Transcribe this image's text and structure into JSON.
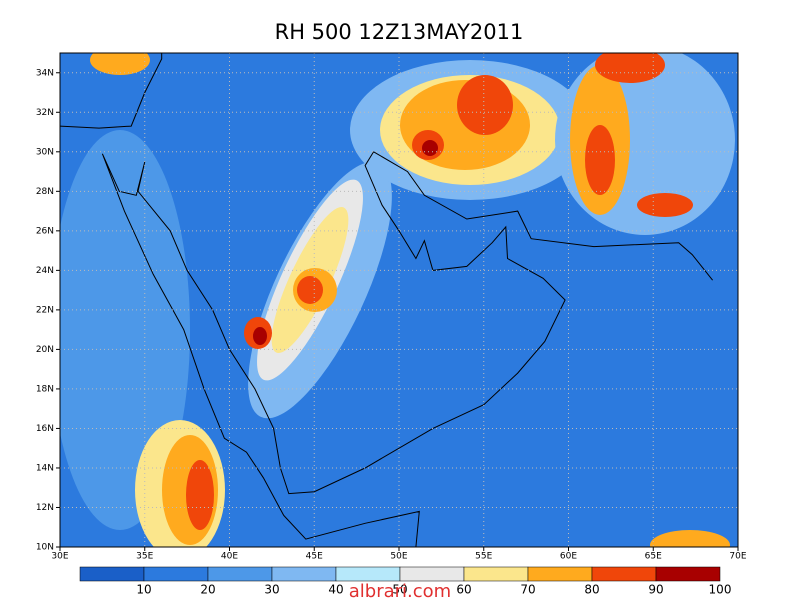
{
  "chart_data": {
    "type": "map",
    "title": "RH 500 12Z13MAY2011",
    "xlim": [
      30,
      70
    ],
    "ylim": [
      10,
      35
    ],
    "xticks": [
      {
        "value": 30,
        "label": "30E"
      },
      {
        "value": 35,
        "label": "35E"
      },
      {
        "value": 40,
        "label": "40E"
      },
      {
        "value": 45,
        "label": "45E"
      },
      {
        "value": 50,
        "label": "50E"
      },
      {
        "value": 55,
        "label": "55E"
      },
      {
        "value": 60,
        "label": "60E"
      },
      {
        "value": 65,
        "label": "65E"
      },
      {
        "value": 70,
        "label": "70E"
      }
    ],
    "yticks": [
      {
        "value": 10,
        "label": "10N"
      },
      {
        "value": 12,
        "label": "12N"
      },
      {
        "value": 14,
        "label": "14N"
      },
      {
        "value": 16,
        "label": "16N"
      },
      {
        "value": 18,
        "label": "18N"
      },
      {
        "value": 20,
        "label": "20N"
      },
      {
        "value": 22,
        "label": "22N"
      },
      {
        "value": 24,
        "label": "24N"
      },
      {
        "value": 26,
        "label": "26N"
      },
      {
        "value": 28,
        "label": "28N"
      },
      {
        "value": 30,
        "label": "30N"
      },
      {
        "value": 32,
        "label": "32N"
      },
      {
        "value": 34,
        "label": "34N"
      }
    ],
    "grid": true,
    "colorbar": {
      "levels": [
        10,
        20,
        30,
        40,
        50,
        60,
        70,
        80,
        90,
        100
      ],
      "colors": [
        "#1a5fc8",
        "#2c7ade",
        "#4d98e8",
        "#7fb8f2",
        "#b6e8fa",
        "#e8e8e8",
        "#fbe68c",
        "#ffaa1e",
        "#f0460a",
        "#a80000"
      ]
    },
    "watermark": "albrari.com"
  }
}
